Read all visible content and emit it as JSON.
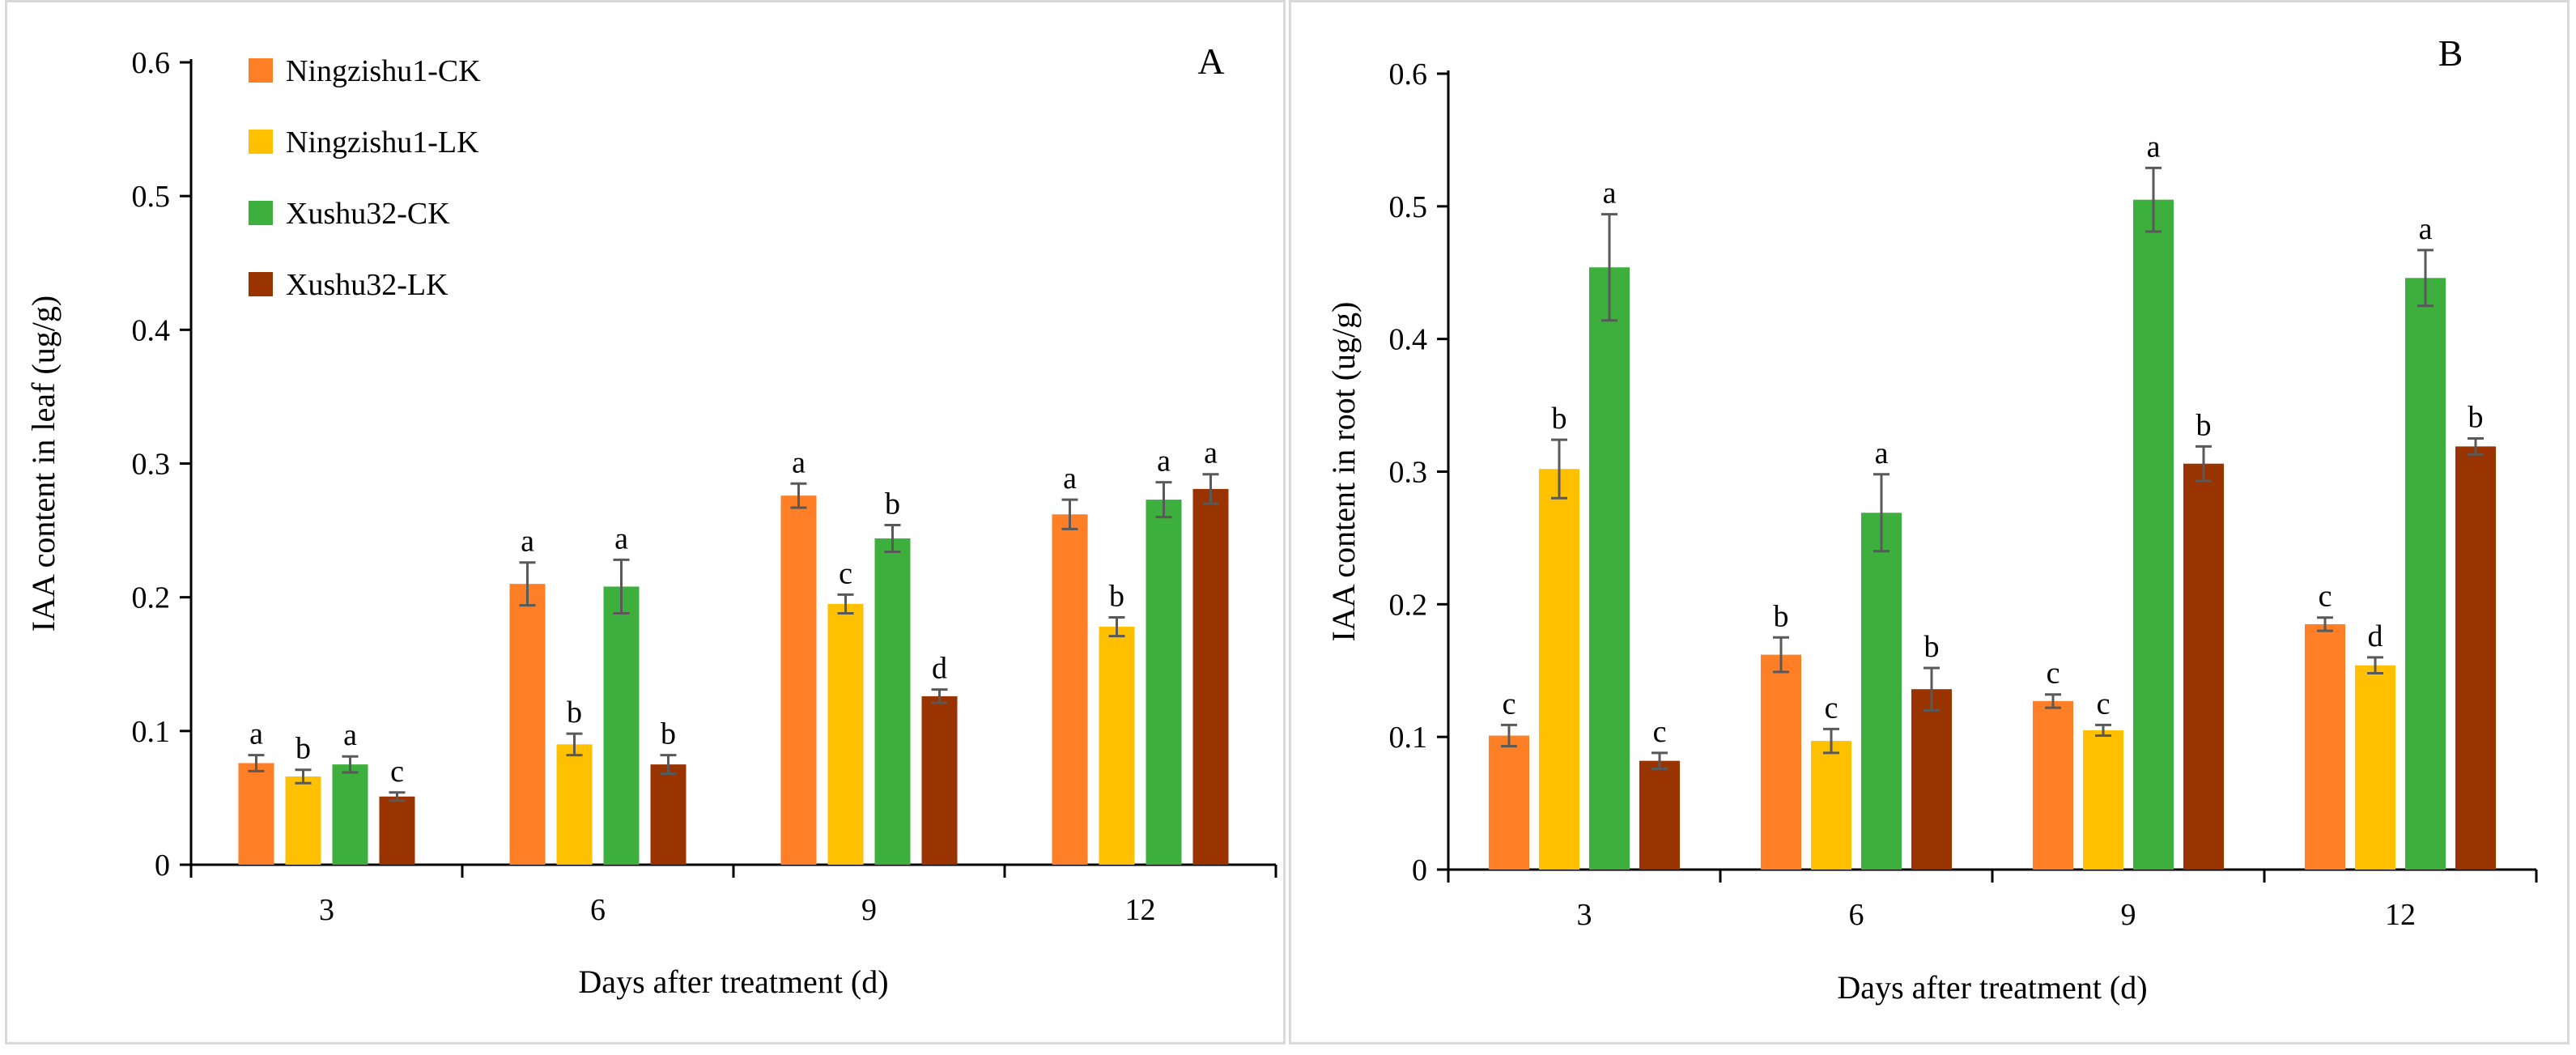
{
  "chart_data": [
    {
      "type": "bar",
      "panel_label": "A",
      "title": "",
      "xlabel": "Days after treatment (d)",
      "ylabel": "IAA content in leaf (ug/g)",
      "ylim": [
        0,
        0.6
      ],
      "yticks": [
        "0",
        "0.1",
        "0.2",
        "0.3",
        "0.4",
        "0.5",
        "0.6"
      ],
      "categories": [
        "3",
        "6",
        "9",
        "12"
      ],
      "legend_position": "top-left",
      "series": [
        {
          "name": "Ningzishu1-CK",
          "color": "#FF7F27",
          "values": [
            0.076,
            0.21,
            0.276,
            0.262
          ],
          "errors": [
            0.006,
            0.016,
            0.009,
            0.011
          ],
          "letters": [
            "a",
            "a",
            "a",
            "a"
          ]
        },
        {
          "name": "Ningzishu1-LK",
          "color": "#FFC000",
          "values": [
            0.066,
            0.09,
            0.195,
            0.178
          ],
          "errors": [
            0.005,
            0.008,
            0.007,
            0.007
          ],
          "letters": [
            "b",
            "b",
            "c",
            "b"
          ]
        },
        {
          "name": "Xushu32-CK",
          "color": "#3DAF3D",
          "values": [
            0.075,
            0.208,
            0.244,
            0.273
          ],
          "errors": [
            0.006,
            0.02,
            0.01,
            0.013
          ],
          "letters": [
            "a",
            "a",
            "b",
            "a"
          ]
        },
        {
          "name": "Xushu32-LK",
          "color": "#993300",
          "values": [
            0.051,
            0.075,
            0.126,
            0.281
          ],
          "errors": [
            0.003,
            0.007,
            0.005,
            0.011
          ],
          "letters": [
            "c",
            "b",
            "d",
            "a"
          ]
        }
      ]
    },
    {
      "type": "bar",
      "panel_label": "B",
      "title": "",
      "xlabel": "Days after treatment (d)",
      "ylabel": "IAA content in root (ug/g)",
      "ylim": [
        0,
        0.6
      ],
      "yticks": [
        "0",
        "0.1",
        "0.2",
        "0.3",
        "0.4",
        "0.5",
        "0.6"
      ],
      "categories": [
        "3",
        "6",
        "9",
        "12"
      ],
      "series": [
        {
          "name": "Ningzishu1-CK",
          "color": "#FF7F27",
          "values": [
            0.101,
            0.162,
            0.127,
            0.185
          ],
          "errors": [
            0.008,
            0.013,
            0.005,
            0.005
          ],
          "letters": [
            "c",
            "b",
            "c",
            "c"
          ]
        },
        {
          "name": "Ningzishu1-LK",
          "color": "#FFC000",
          "values": [
            0.302,
            0.097,
            0.105,
            0.154
          ],
          "errors": [
            0.022,
            0.009,
            0.004,
            0.006
          ],
          "letters": [
            "b",
            "c",
            "c",
            "d"
          ]
        },
        {
          "name": "Xushu32-CK",
          "color": "#3DAF3D",
          "values": [
            0.454,
            0.269,
            0.505,
            0.446
          ],
          "errors": [
            0.04,
            0.029,
            0.024,
            0.021
          ],
          "letters": [
            "a",
            "a",
            "a",
            "a"
          ]
        },
        {
          "name": "Xushu32-LK",
          "color": "#993300",
          "values": [
            0.082,
            0.136,
            0.306,
            0.319
          ],
          "errors": [
            0.006,
            0.016,
            0.013,
            0.006
          ],
          "letters": [
            "c",
            "b",
            "b",
            "b"
          ]
        }
      ]
    }
  ]
}
